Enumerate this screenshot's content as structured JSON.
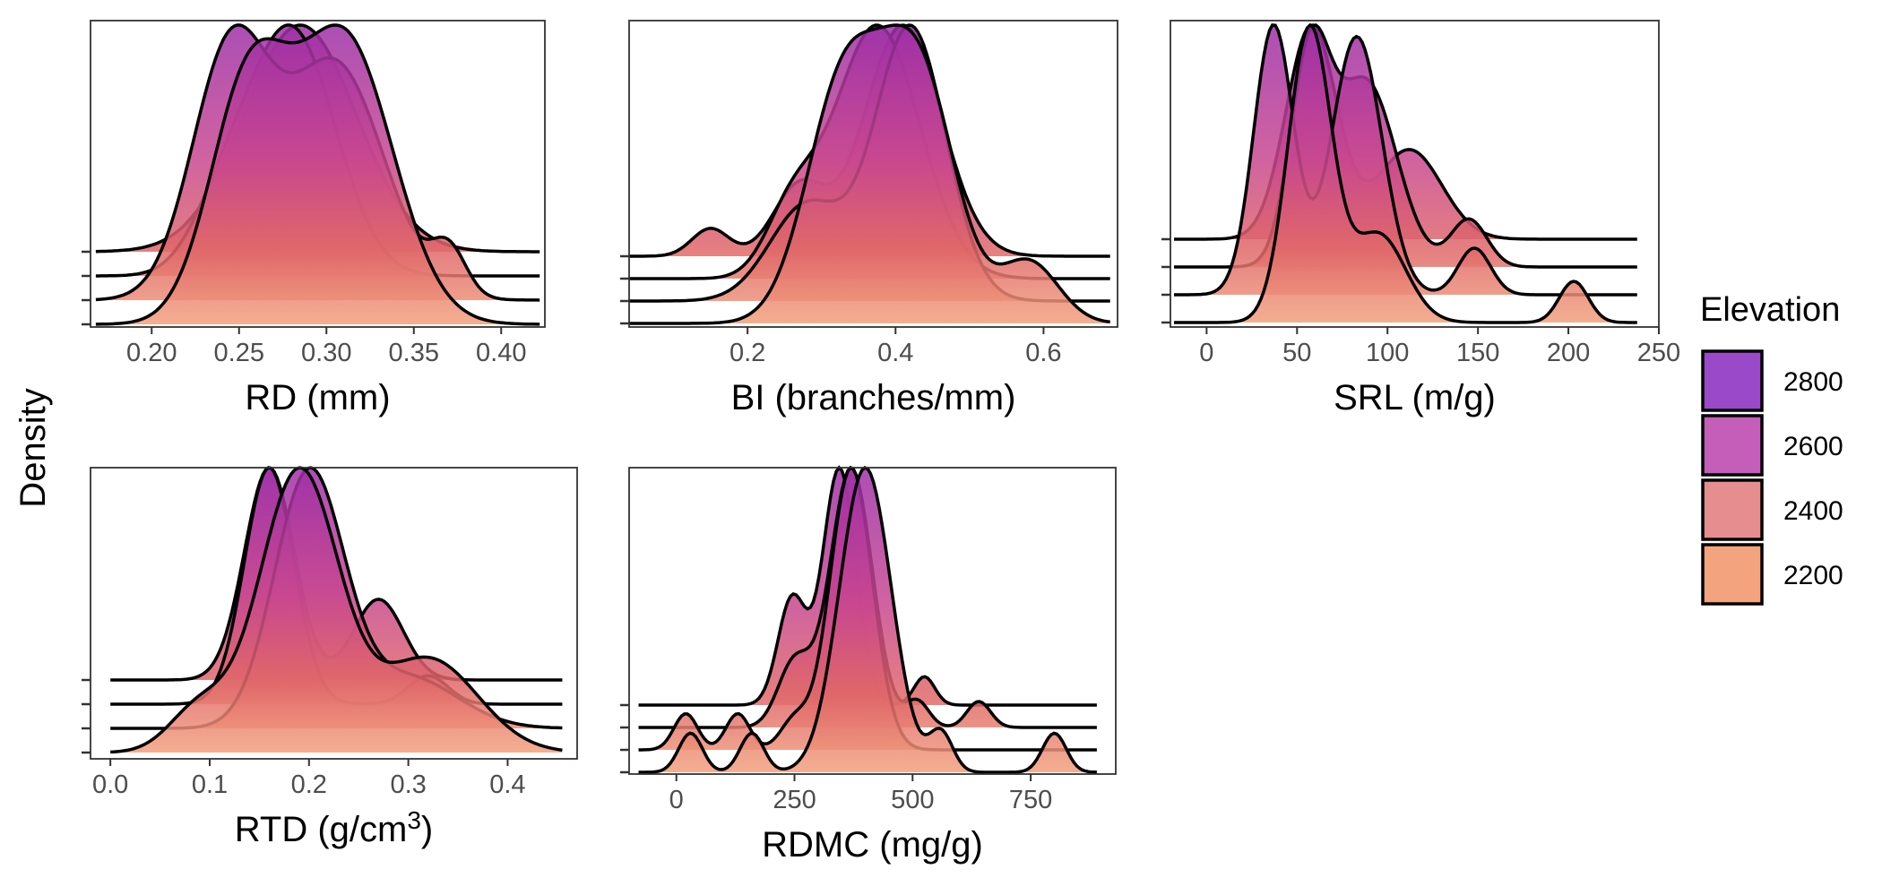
{
  "y_axis_title": "Density",
  "legend": {
    "title": "Elevation",
    "items": [
      {
        "label": "2800",
        "color": "#9a4ac8"
      },
      {
        "label": "2600",
        "color": "#c55eb9"
      },
      {
        "label": "2400",
        "color": "#e58d8f"
      },
      {
        "label": "2200",
        "color": "#f3a47f"
      }
    ]
  },
  "chart_data": [
    {
      "type": "area",
      "subtype": "ridgeline-density",
      "xlabel": "RD (mm)",
      "ylabel": "Density",
      "xlim": [
        0.165,
        0.425
      ],
      "xticks": [
        0.2,
        0.25,
        0.3,
        0.35,
        0.4
      ],
      "xtick_labels": [
        "0.20",
        "0.25",
        "0.30",
        "0.35",
        "0.40"
      ],
      "range": [
        0.168,
        0.422
      ],
      "series": [
        {
          "name": "2800",
          "peaks": [
            {
              "x": 0.285,
              "w": 0.032,
              "h": 1.0
            }
          ]
        },
        {
          "name": "2600",
          "peaks": [
            {
              "x": 0.28,
              "w": 0.025,
              "h": 1.0
            },
            {
              "x": 0.24,
              "w": 0.018,
              "h": 0.22
            }
          ]
        },
        {
          "name": "2400",
          "peaks": [
            {
              "x": 0.245,
              "w": 0.022,
              "h": 1.0
            },
            {
              "x": 0.305,
              "w": 0.028,
              "h": 0.95
            },
            {
              "x": 0.37,
              "w": 0.01,
              "h": 0.18
            }
          ]
        },
        {
          "name": "2200",
          "peaks": [
            {
              "x": 0.255,
              "w": 0.022,
              "h": 0.8
            },
            {
              "x": 0.31,
              "w": 0.028,
              "h": 1.0
            }
          ]
        }
      ]
    },
    {
      "type": "area",
      "subtype": "ridgeline-density",
      "xlabel": "BI (branches/mm)",
      "ylabel": "Density",
      "xlim": [
        0.04,
        0.7
      ],
      "xticks": [
        0.2,
        0.4,
        0.6
      ],
      "xtick_labels": [
        "0.2",
        "0.4",
        "0.6"
      ],
      "range": [
        0.04,
        0.69
      ],
      "series": [
        {
          "name": "2800",
          "peaks": [
            {
              "x": 0.41,
              "w": 0.052,
              "h": 1.0
            },
            {
              "x": 0.27,
              "w": 0.035,
              "h": 0.3
            },
            {
              "x": 0.15,
              "w": 0.025,
              "h": 0.12
            }
          ]
        },
        {
          "name": "2600",
          "peaks": [
            {
              "x": 0.375,
              "w": 0.058,
              "h": 1.0
            },
            {
              "x": 0.26,
              "w": 0.035,
              "h": 0.25
            }
          ]
        },
        {
          "name": "2400",
          "peaks": [
            {
              "x": 0.42,
              "w": 0.048,
              "h": 1.0
            },
            {
              "x": 0.28,
              "w": 0.05,
              "h": 0.35
            }
          ]
        },
        {
          "name": "2200",
          "peaks": [
            {
              "x": 0.33,
              "w": 0.05,
              "h": 0.85
            },
            {
              "x": 0.43,
              "w": 0.05,
              "h": 0.9
            },
            {
              "x": 0.58,
              "w": 0.04,
              "h": 0.22
            }
          ]
        }
      ]
    },
    {
      "type": "area",
      "subtype": "ridgeline-density",
      "xlabel": "SRL (m/g)",
      "ylabel": "Density",
      "xlim": [
        -20,
        250
      ],
      "xticks": [
        0,
        50,
        100,
        150,
        200,
        250
      ],
      "xtick_labels": [
        "0",
        "50",
        "100",
        "150",
        "200",
        "250"
      ],
      "range": [
        -18,
        238
      ],
      "series": [
        {
          "name": "2800",
          "peaks": [
            {
              "x": 58,
              "w": 14,
              "h": 1.0
            },
            {
              "x": 112,
              "w": 18,
              "h": 0.42
            }
          ]
        },
        {
          "name": "2600",
          "peaks": [
            {
              "x": 57,
              "w": 11,
              "h": 0.85
            },
            {
              "x": 88,
              "w": 17,
              "h": 0.78
            },
            {
              "x": 145,
              "w": 10,
              "h": 0.2
            }
          ]
        },
        {
          "name": "2400",
          "peaks": [
            {
              "x": 37,
              "w": 11,
              "h": 0.75
            },
            {
              "x": 83,
              "w": 14,
              "h": 0.72
            },
            {
              "x": 148,
              "w": 9,
              "h": 0.13
            }
          ]
        },
        {
          "name": "2200",
          "peaks": [
            {
              "x": 57,
              "w": 12,
              "h": 1.0
            },
            {
              "x": 95,
              "w": 15,
              "h": 0.3
            },
            {
              "x": 203,
              "w": 8,
              "h": 0.14
            }
          ]
        }
      ]
    },
    {
      "type": "area",
      "subtype": "ridgeline-density",
      "xlabel": "RTD (g/cm",
      "xlabel_sup": "3",
      "xlabel_suffix": ")",
      "ylabel": "Density",
      "xlim": [
        -0.02,
        0.47
      ],
      "xticks": [
        0.0,
        0.1,
        0.2,
        0.3,
        0.4
      ],
      "xtick_labels": [
        "0.0",
        "0.1",
        "0.2",
        "0.3",
        "0.4"
      ],
      "range": [
        0.0,
        0.455
      ],
      "series": [
        {
          "name": "2800",
          "peaks": [
            {
              "x": 0.16,
              "w": 0.025,
              "h": 1.0
            },
            {
              "x": 0.27,
              "w": 0.025,
              "h": 0.38
            }
          ]
        },
        {
          "name": "2600",
          "peaks": [
            {
              "x": 0.16,
              "w": 0.025,
              "h": 1.0
            },
            {
              "x": 0.32,
              "w": 0.02,
              "h": 0.12
            }
          ]
        },
        {
          "name": "2400",
          "peaks": [
            {
              "x": 0.2,
              "w": 0.035,
              "h": 0.6
            },
            {
              "x": 0.3,
              "w": 0.05,
              "h": 0.12
            }
          ]
        },
        {
          "name": "2200",
          "peaks": [
            {
              "x": 0.19,
              "w": 0.04,
              "h": 0.75
            },
            {
              "x": 0.32,
              "w": 0.05,
              "h": 0.25
            },
            {
              "x": 0.09,
              "w": 0.03,
              "h": 0.12
            }
          ]
        }
      ]
    },
    {
      "type": "area",
      "subtype": "ridgeline-density",
      "xlabel": "RDMC (mg/g)",
      "ylabel": "Density",
      "xlim": [
        -100,
        930
      ],
      "xticks": [
        0,
        250,
        500,
        750
      ],
      "xtick_labels": [
        "0",
        "250",
        "500",
        "750"
      ],
      "range": [
        -80,
        890
      ],
      "series": [
        {
          "name": "2800",
          "peaks": [
            {
              "x": 345,
              "w": 35,
              "h": 1.0
            },
            {
              "x": 245,
              "w": 30,
              "h": 0.45
            },
            {
              "x": 525,
              "w": 22,
              "h": 0.12
            }
          ]
        },
        {
          "name": "2600",
          "peaks": [
            {
              "x": 370,
              "w": 45,
              "h": 1.0
            },
            {
              "x": 250,
              "w": 35,
              "h": 0.25
            },
            {
              "x": 640,
              "w": 25,
              "h": 0.1
            },
            {
              "x": 510,
              "w": 25,
              "h": 0.1
            }
          ]
        },
        {
          "name": "2400",
          "peaks": [
            {
              "x": 370,
              "w": 45,
              "h": 0.78
            },
            {
              "x": 20,
              "w": 25,
              "h": 0.1
            },
            {
              "x": 130,
              "w": 25,
              "h": 0.1
            },
            {
              "x": 250,
              "w": 30,
              "h": 0.08
            }
          ]
        },
        {
          "name": "2200",
          "peaks": [
            {
              "x": 400,
              "w": 55,
              "h": 0.78
            },
            {
              "x": 30,
              "w": 25,
              "h": 0.1
            },
            {
              "x": 160,
              "w": 25,
              "h": 0.1
            },
            {
              "x": 560,
              "w": 25,
              "h": 0.1
            },
            {
              "x": 800,
              "w": 25,
              "h": 0.1
            }
          ]
        }
      ]
    }
  ]
}
